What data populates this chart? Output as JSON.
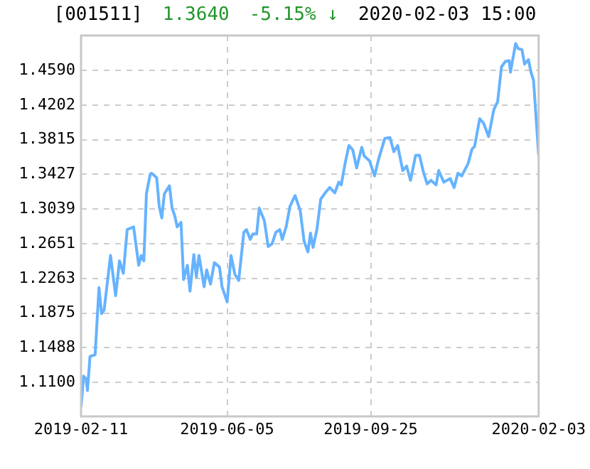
{
  "chart_data": {
    "type": "line",
    "title": "[001511]",
    "annotations": [
      "1.3640",
      "-5.15% ↓",
      "2020-02-03 15:00"
    ],
    "x": [
      "2019-02-11",
      "2019-02-13",
      "2019-02-15",
      "2019-02-16",
      "2019-02-18",
      "2019-02-22",
      "2019-02-25",
      "2019-02-27",
      "2019-03-01",
      "2019-03-06",
      "2019-03-10",
      "2019-03-13",
      "2019-03-16",
      "2019-03-19",
      "2019-03-24",
      "2019-03-28",
      "2019-03-30",
      "2019-04-01",
      "2019-04-03",
      "2019-04-06",
      "2019-04-07",
      "2019-04-11",
      "2019-04-13",
      "2019-04-15",
      "2019-04-17",
      "2019-04-21",
      "2019-04-23",
      "2019-04-25",
      "2019-04-27",
      "2019-04-30",
      "2019-05-02",
      "2019-05-05",
      "2019-05-07",
      "2019-05-10",
      "2019-05-12",
      "2019-05-14",
      "2019-05-18",
      "2019-05-20",
      "2019-05-23",
      "2019-05-26",
      "2019-05-30",
      "2019-06-01",
      "2019-06-05",
      "2019-06-08",
      "2019-06-11",
      "2019-06-14",
      "2019-06-18",
      "2019-06-20",
      "2019-06-23",
      "2019-06-25",
      "2019-06-28",
      "2019-06-30",
      "2019-07-04",
      "2019-07-07",
      "2019-07-10",
      "2019-07-13",
      "2019-07-16",
      "2019-07-18",
      "2019-07-21",
      "2019-07-24",
      "2019-07-28",
      "2019-08-01",
      "2019-08-04",
      "2019-08-07",
      "2019-08-09",
      "2019-08-11",
      "2019-08-14",
      "2019-08-17",
      "2019-08-21",
      "2019-08-24",
      "2019-08-28",
      "2019-08-31",
      "2019-09-02",
      "2019-09-05",
      "2019-09-08",
      "2019-09-11",
      "2019-09-14",
      "2019-09-18",
      "2019-09-20",
      "2019-09-24",
      "2019-09-28",
      "2019-10-01",
      "2019-10-06",
      "2019-10-10",
      "2019-10-13",
      "2019-10-16",
      "2019-10-20",
      "2019-10-23",
      "2019-10-26",
      "2019-10-30",
      "2019-11-02",
      "2019-11-05",
      "2019-11-08",
      "2019-11-11",
      "2019-11-15",
      "2019-11-17",
      "2019-11-21",
      "2019-11-26",
      "2019-11-29",
      "2019-12-02",
      "2019-12-05",
      "2019-12-10",
      "2019-12-13",
      "2019-12-15",
      "2019-12-19",
      "2019-12-22",
      "2019-12-26",
      "2019-12-30",
      "2020-01-02",
      "2020-01-05",
      "2020-01-08",
      "2020-01-11",
      "2020-01-12",
      "2020-01-16",
      "2020-01-18",
      "2020-01-21",
      "2020-01-23",
      "2020-01-26",
      "2020-01-28",
      "2020-01-30",
      "2020-02-03"
    ],
    "series": [
      {
        "color": "#66b3ff",
        "values": [
          1.0825,
          1.117,
          1.114,
          1.101,
          1.139,
          1.141,
          1.216,
          1.187,
          1.191,
          1.252,
          1.207,
          1.246,
          1.232,
          1.281,
          1.284,
          1.241,
          1.252,
          1.246,
          1.321,
          1.343,
          1.344,
          1.339,
          1.307,
          1.294,
          1.321,
          1.33,
          1.305,
          1.297,
          1.284,
          1.289,
          1.225,
          1.241,
          1.212,
          1.253,
          1.228,
          1.252,
          1.217,
          1.236,
          1.22,
          1.244,
          1.239,
          1.217,
          1.2,
          1.252,
          1.231,
          1.224,
          1.278,
          1.281,
          1.27,
          1.276,
          1.276,
          1.305,
          1.291,
          1.262,
          1.265,
          1.278,
          1.281,
          1.27,
          1.284,
          1.307,
          1.319,
          1.302,
          1.268,
          1.256,
          1.277,
          1.261,
          1.281,
          1.315,
          1.323,
          1.328,
          1.322,
          1.334,
          1.331,
          1.355,
          1.375,
          1.37,
          1.35,
          1.373,
          1.363,
          1.358,
          1.341,
          1.359,
          1.383,
          1.384,
          1.368,
          1.375,
          1.347,
          1.352,
          1.336,
          1.364,
          1.364,
          1.346,
          1.332,
          1.336,
          1.331,
          1.347,
          1.334,
          1.338,
          1.328,
          1.344,
          1.341,
          1.355,
          1.371,
          1.374,
          1.405,
          1.4,
          1.385,
          1.415,
          1.424,
          1.463,
          1.469,
          1.47,
          1.457,
          1.489,
          1.4835,
          1.482,
          1.466,
          1.471,
          1.457,
          1.448,
          1.364
        ]
      }
    ],
    "xlim": [
      "2019-02-11",
      "2020-02-03"
    ],
    "xticks": [
      "2019-02-11",
      "2019-06-05",
      "2019-09-25",
      "2020-02-03"
    ],
    "ylim": [
      1.072,
      1.498
    ],
    "yticks": [
      {
        "value": 1.11,
        "label": "1.1100"
      },
      1.1488,
      1.1875,
      1.2263,
      1.2651,
      1.3039,
      1.3427,
      1.3815,
      1.4202,
      {
        "value": 1.459,
        "label": "1.4590"
      }
    ],
    "grid": true,
    "legend": false,
    "marker": "none",
    "line_style": "solid"
  }
}
